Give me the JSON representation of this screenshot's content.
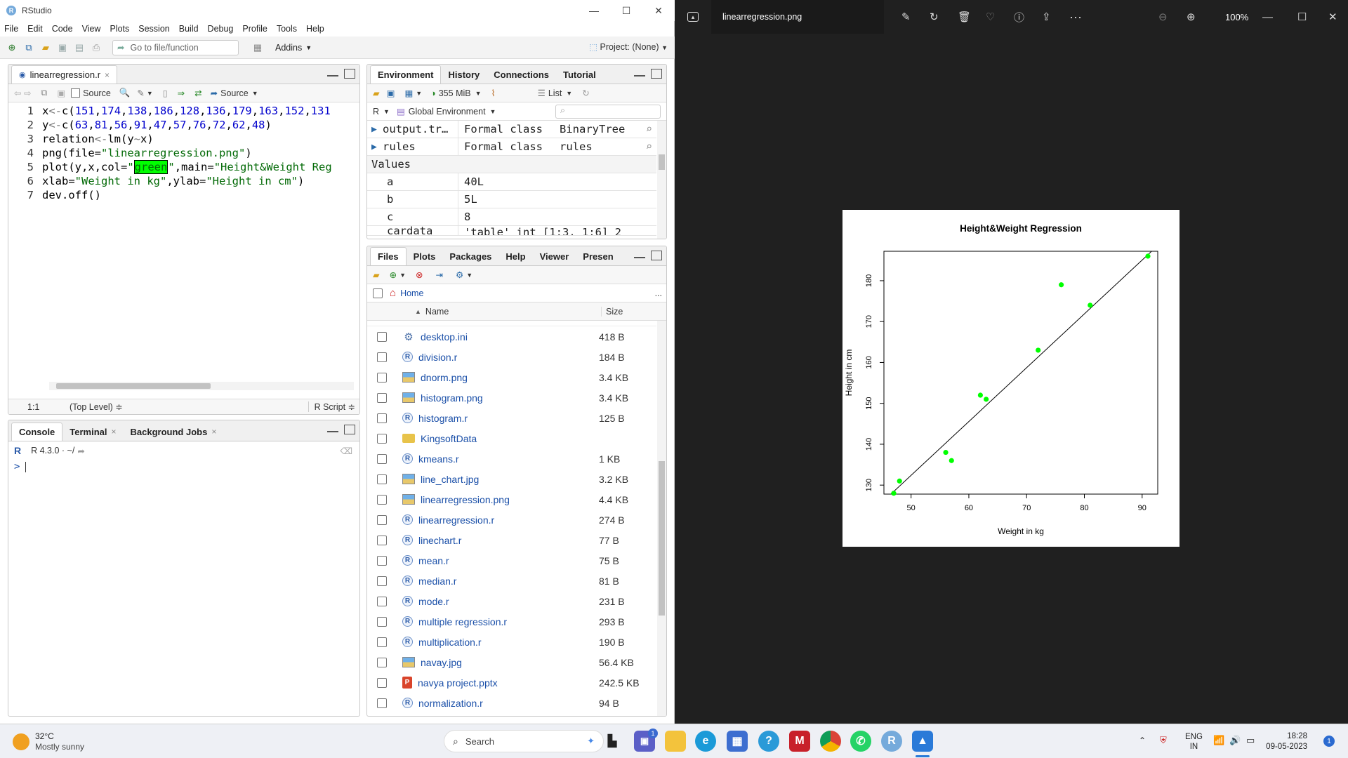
{
  "rstudio": {
    "app_title": "RStudio",
    "window_controls": {
      "minimize": "—",
      "maximize": "☐",
      "close": "✕"
    },
    "menu": [
      "File",
      "Edit",
      "Code",
      "View",
      "Plots",
      "Session",
      "Build",
      "Debug",
      "Profile",
      "Tools",
      "Help"
    ],
    "toolbar": {
      "goto_placeholder": "Go to file/function",
      "addins": "Addins",
      "project": "Project: (None)"
    },
    "editor": {
      "tab_label": "linearregression.r",
      "tab_close": "×",
      "source_on_save": "Source",
      "source_btn": "Source",
      "status_pos": "1:1",
      "status_scope": "(Top Level) ≑",
      "status_type": "R Script ≑"
    },
    "console": {
      "tabs": [
        {
          "label": "Console"
        },
        {
          "label": "Terminal",
          "close": "×"
        },
        {
          "label": "Background Jobs",
          "close": "×"
        }
      ],
      "version": "R 4.3.0 · ~/ ",
      "prompt": ">"
    },
    "environment": {
      "tabs": [
        "Environment",
        "History",
        "Connections",
        "Tutorial"
      ],
      "memory": "355 MiB",
      "list_mode": "List",
      "lang": "R",
      "scope": "Global Environment",
      "objects": [
        {
          "name": "output.tr…",
          "type": "Formal class",
          "value": "BinaryTree"
        },
        {
          "name": "rules",
          "type": "Formal class",
          "value": "rules"
        }
      ],
      "values_header": "Values",
      "values": [
        {
          "name": "a",
          "value": "40L"
        },
        {
          "name": "b",
          "value": "5L"
        },
        {
          "name": "c",
          "value": "8"
        },
        {
          "name": "cardata",
          "value": "'table' int [1:3, 1:6] 2"
        }
      ]
    },
    "files": {
      "tabs": [
        "Files",
        "Plots",
        "Packages",
        "Help",
        "Viewer",
        "Presen"
      ],
      "breadcrumb": "Home",
      "more": "...",
      "col_name": "Name",
      "col_size": "Size",
      "rows": [
        {
          "name": "desktop.ini",
          "size": "418 B",
          "icon": "gear"
        },
        {
          "name": "division.r",
          "size": "184 B",
          "icon": "r"
        },
        {
          "name": "dnorm.png",
          "size": "3.4 KB",
          "icon": "img"
        },
        {
          "name": "histogram.png",
          "size": "3.4 KB",
          "icon": "img"
        },
        {
          "name": "histogram.r",
          "size": "125 B",
          "icon": "r"
        },
        {
          "name": "KingsoftData",
          "size": "",
          "icon": "folder"
        },
        {
          "name": "kmeans.r",
          "size": "1 KB",
          "icon": "r"
        },
        {
          "name": "line_chart.jpg",
          "size": "3.2 KB",
          "icon": "img"
        },
        {
          "name": "linearregression.png",
          "size": "4.4 KB",
          "icon": "img"
        },
        {
          "name": "linearregression.r",
          "size": "274 B",
          "icon": "r"
        },
        {
          "name": "linechart.r",
          "size": "77 B",
          "icon": "r"
        },
        {
          "name": "mean.r",
          "size": "75 B",
          "icon": "r"
        },
        {
          "name": "median.r",
          "size": "81 B",
          "icon": "r"
        },
        {
          "name": "mode.r",
          "size": "231 B",
          "icon": "r"
        },
        {
          "name": "multiple regression.r",
          "size": "293 B",
          "icon": "r"
        },
        {
          "name": "multiplication.r",
          "size": "190 B",
          "icon": "r"
        },
        {
          "name": "navay.jpg",
          "size": "56.4 KB",
          "icon": "img"
        },
        {
          "name": "navya project.pptx",
          "size": "242.5 KB",
          "icon": "ppt"
        },
        {
          "name": "normalization.r",
          "size": "94 B",
          "icon": "r"
        }
      ]
    }
  },
  "viewer": {
    "filename": "linearregression.png",
    "zoom": "100%"
  },
  "chart_data": {
    "type": "scatter",
    "title": "Height&Weight Regression",
    "xlabel": "Weight in kg",
    "ylabel": "Height in cm",
    "xlim": [
      45.3,
      92.7
    ],
    "ylim": [
      127.8,
      187.2
    ],
    "x_ticks": [
      50,
      60,
      70,
      80,
      90
    ],
    "y_ticks": [
      130,
      140,
      150,
      160,
      170,
      180
    ],
    "point_color": "#00ff00",
    "points": [
      {
        "x": 63,
        "y": 151
      },
      {
        "x": 81,
        "y": 174
      },
      {
        "x": 56,
        "y": 138
      },
      {
        "x": 91,
        "y": 186
      },
      {
        "x": 47,
        "y": 128
      },
      {
        "x": 57,
        "y": 136
      },
      {
        "x": 76,
        "y": 179
      },
      {
        "x": 72,
        "y": 163
      },
      {
        "x": 62,
        "y": 152
      },
      {
        "x": 48,
        "y": 131
      }
    ],
    "regression_line": {
      "x1": 45.3,
      "y1": 126.2,
      "x2": 92.7,
      "y2": 188.6
    }
  },
  "taskbar": {
    "weather_temp": "32°C",
    "weather_desc": "Mostly sunny",
    "search": "Search",
    "lang1": "ENG",
    "lang2": "IN",
    "time": "18:28",
    "date": "09-05-2023",
    "badge": "1"
  }
}
